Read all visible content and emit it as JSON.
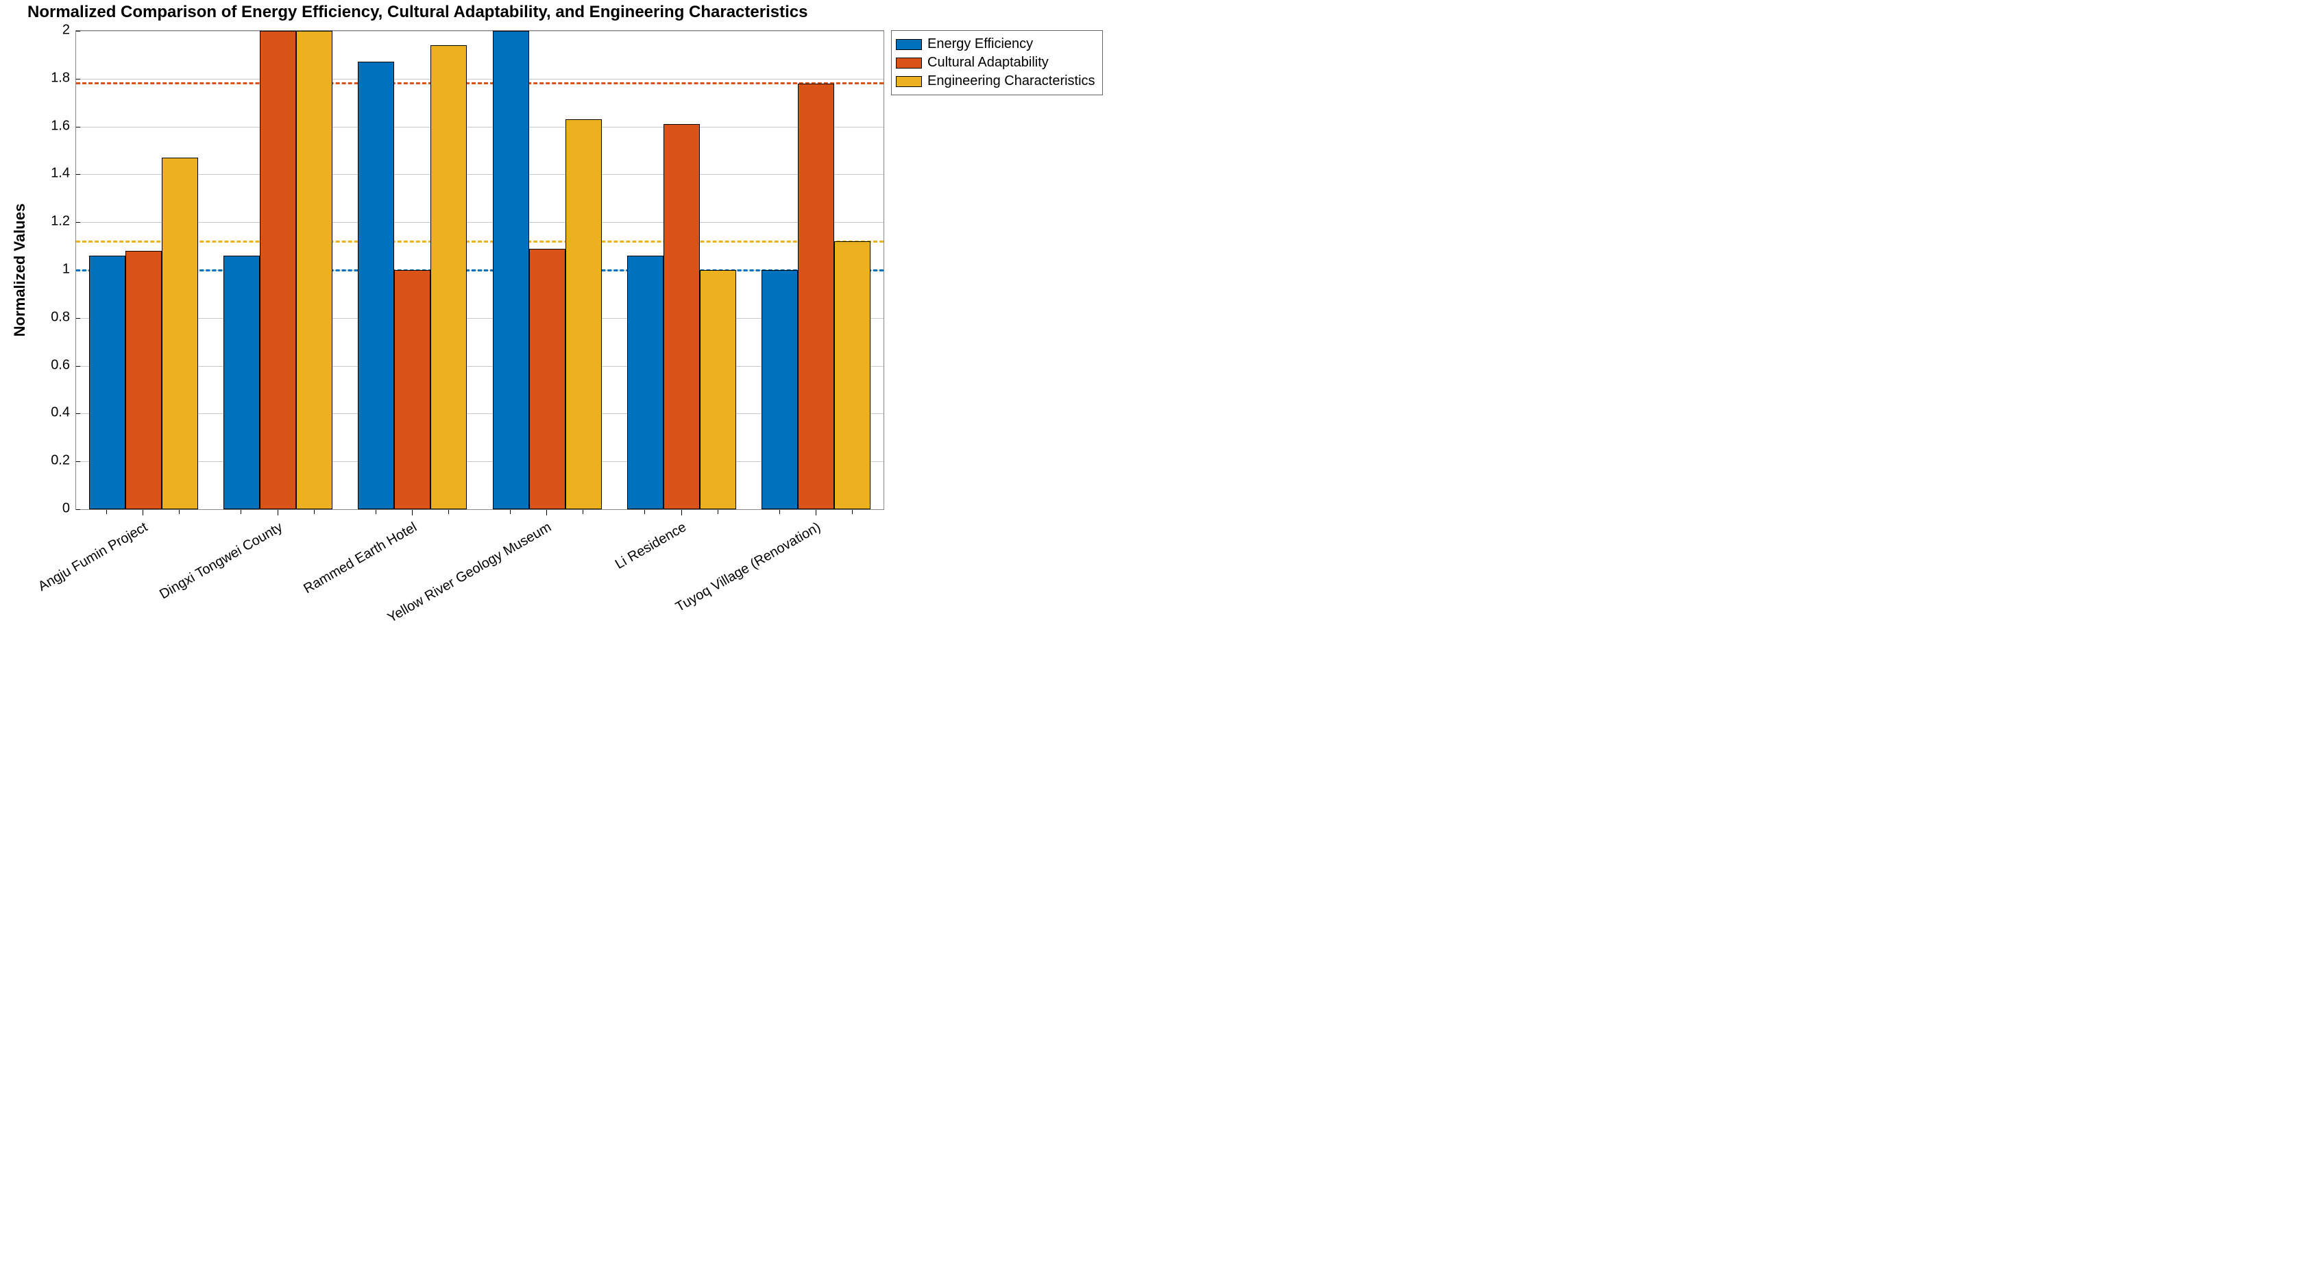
{
  "chart": {
    "type": "bar",
    "title": "Normalized Comparison of Energy Efficiency, Cultural Adaptability, and Engineering Characteristics",
    "title_fontsize": 24,
    "title_fontweight": "bold",
    "ylabel": "Normalized Values",
    "ylabel_fontsize": 22,
    "ylabel_fontweight": "bold",
    "xtick_fontsize": 20,
    "ytick_fontsize": 20,
    "xtick_rotation_deg": -30,
    "ylim": [
      0,
      2
    ],
    "yticks": [
      0,
      0.2,
      0.4,
      0.6,
      0.8,
      1,
      1.2,
      1.4,
      1.6,
      1.8,
      2
    ],
    "ytick_labels": [
      "0",
      "0.2",
      "0.4",
      "0.6",
      "0.8",
      "1",
      "1.2",
      "1.4",
      "1.6",
      "1.8",
      "2"
    ],
    "grid_on": true,
    "grid_color": "#c8c8c8",
    "background_color": "#ffffff",
    "axis_color": "#888888",
    "bar_border_color": "#000000",
    "bar_width_ratio": 0.27,
    "group_gap_ratio": 0.06,
    "categories": [
      "Angju Fumin Project",
      "Dingxi Tongwei County",
      "Rammed Earth Hotel",
      "Yellow River Geology Museum",
      "Li Residence",
      "Tuyoq Village (Renovation)"
    ],
    "series": [
      {
        "name": "Energy Efficiency",
        "color": "#0072bd",
        "values": [
          1.06,
          1.06,
          1.87,
          2.0,
          1.06,
          1.0
        ]
      },
      {
        "name": "Cultural Adaptability",
        "color": "#d95319",
        "values": [
          1.08,
          2.0,
          1.0,
          1.09,
          1.61,
          1.78
        ]
      },
      {
        "name": "Engineering Characteristics",
        "color": "#edb120",
        "values": [
          1.47,
          2.0,
          1.94,
          1.63,
          1.0,
          1.12
        ]
      }
    ],
    "reference_lines": [
      {
        "value": 1.0,
        "color": "#0072bd",
        "dash": "8,6",
        "width": 3
      },
      {
        "value": 1.12,
        "color": "#edb120",
        "dash": "8,6",
        "width": 3
      },
      {
        "value": 1.78,
        "color": "#d95319",
        "dash": "8,6",
        "width": 3
      }
    ],
    "legend": {
      "position": "outside-right-top",
      "border_color": "#666666",
      "fontsize": 20,
      "items": [
        {
          "label": "Energy Efficiency",
          "color": "#0072bd"
        },
        {
          "label": "Cultural Adaptability",
          "color": "#d95319"
        },
        {
          "label": "Engineering Characteristics",
          "color": "#edb120"
        }
      ]
    }
  }
}
